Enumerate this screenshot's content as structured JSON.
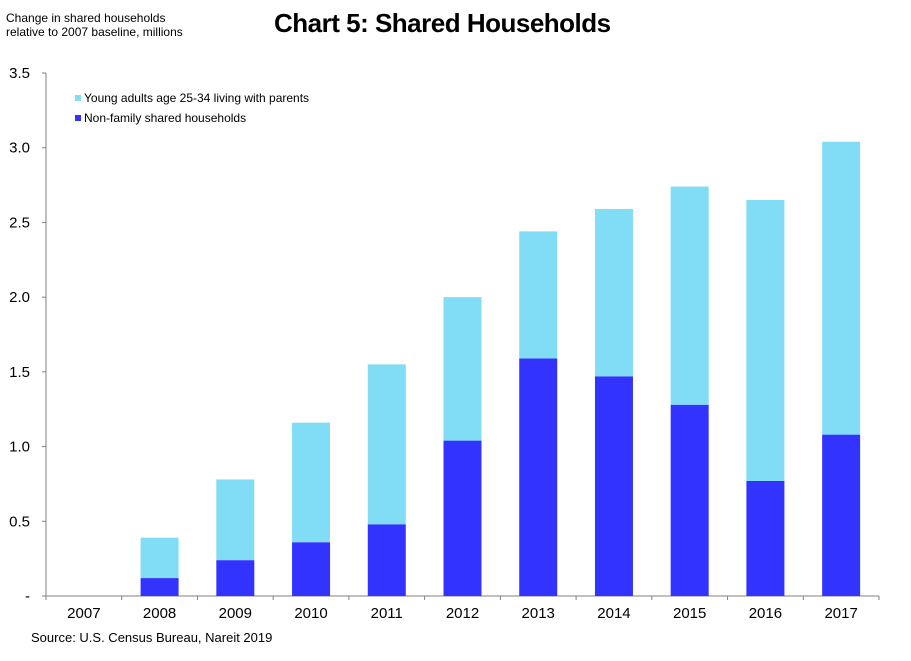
{
  "chart_data": {
    "type": "bar",
    "stacked": true,
    "title": "Chart 5: Shared Households",
    "ylabel": "Change in shared households\nrelative to 2007 baseline, millions",
    "xlabel": "",
    "categories": [
      "2007",
      "2008",
      "2009",
      "2010",
      "2011",
      "2012",
      "2013",
      "2014",
      "2015",
      "2016",
      "2017"
    ],
    "series": [
      {
        "name": "Non-family shared households",
        "color": "#3333ff",
        "values": [
          0,
          0.12,
          0.24,
          0.36,
          0.48,
          1.04,
          1.59,
          1.47,
          1.28,
          0.77,
          1.08
        ]
      },
      {
        "name": "Young adults age 25-34 living with parents",
        "color": "#80ddf5",
        "values": [
          0,
          0.27,
          0.54,
          0.8,
          1.07,
          0.96,
          0.85,
          1.12,
          1.46,
          1.88,
          1.96
        ]
      }
    ],
    "ylim": [
      0,
      3.5
    ],
    "yticks": [
      "-",
      "0.5",
      "1.0",
      "1.5",
      "2.0",
      "2.5",
      "3.0",
      "3.5"
    ],
    "ytick_values": [
      0,
      0.5,
      1.0,
      1.5,
      2.0,
      2.5,
      3.0,
      3.5
    ],
    "legend_position": "top-left",
    "legend_order": [
      1,
      0
    ],
    "grid": false
  },
  "source": "Source:  U.S. Census Bureau,  Nareit 2019"
}
